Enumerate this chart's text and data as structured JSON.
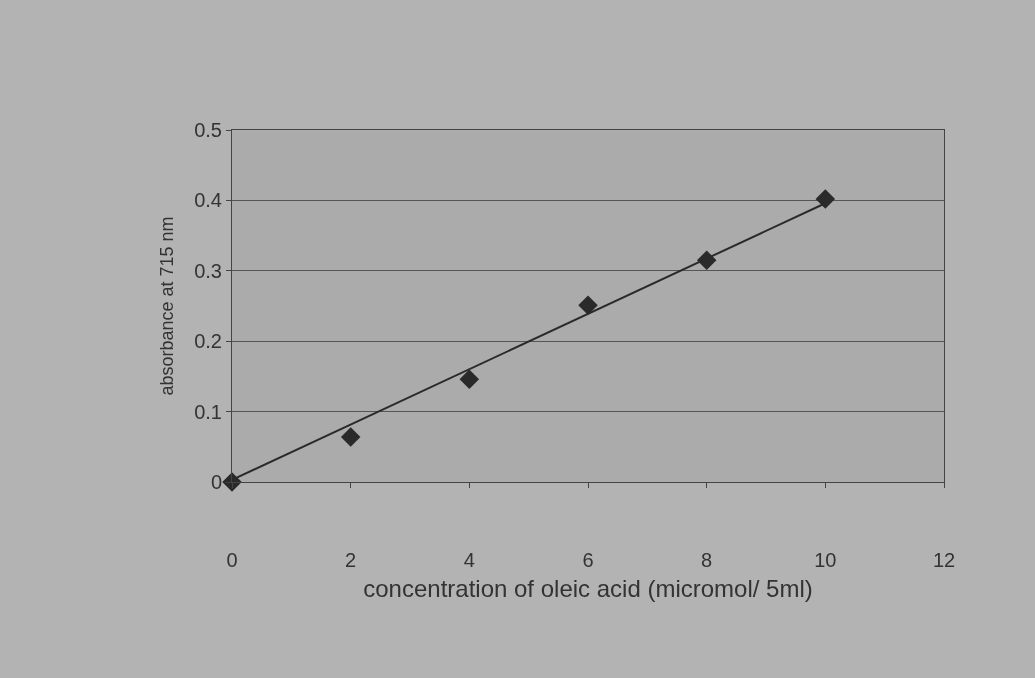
{
  "chart_data": {
    "type": "scatter",
    "xlabel": "concentration of oleic acid (micromol/ 5ml)",
    "ylabel": "absorbance at 715 nm",
    "xlim": [
      0,
      12
    ],
    "xticks": [
      0,
      2,
      4,
      6,
      8,
      10,
      12
    ],
    "ylim": [
      0,
      0.5
    ],
    "yticks": [
      0,
      0.1,
      0.2,
      0.3,
      0.4,
      0.5
    ],
    "grid": "y",
    "legend": false,
    "series": [
      {
        "marker": "diamond",
        "color": "#2a2a2a",
        "x": [
          0,
          2,
          4,
          6,
          8,
          10
        ],
        "values": [
          0,
          0.064,
          0.146,
          0.251,
          0.315,
          0.402
        ]
      },
      {
        "type": "line",
        "marker": "none",
        "color": "#2a2a2a",
        "x": [
          0,
          10
        ],
        "values": [
          0.003,
          0.396
        ]
      }
    ]
  }
}
